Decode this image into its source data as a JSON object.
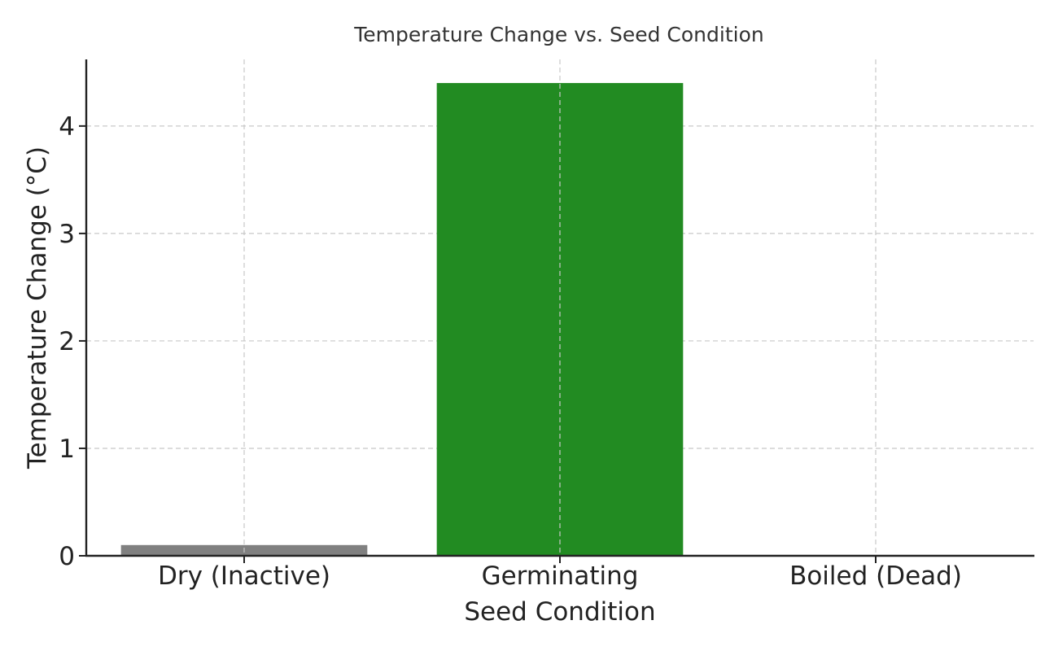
{
  "chart_data": {
    "type": "bar",
    "title": "Temperature Change vs. Seed Condition",
    "xlabel": "Seed Condition",
    "ylabel": "Temperature Change (°C)",
    "categories": [
      "Dry (Inactive)",
      "Germinating",
      "Boiled (Dead)"
    ],
    "values": [
      0.1,
      4.4,
      0.0
    ],
    "colors": [
      "#808080",
      "#228B22",
      "#D2691E"
    ],
    "ylim": [
      0,
      4.62
    ],
    "yticks": [
      0,
      1,
      2,
      3,
      4
    ],
    "grid": true
  }
}
